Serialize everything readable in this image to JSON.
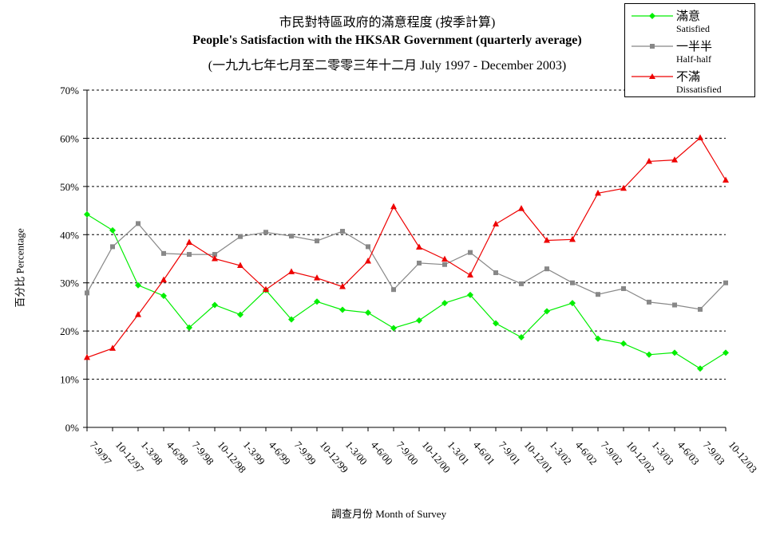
{
  "chart_data": {
    "type": "line",
    "title_zh": "市民對特區政府的滿意程度 (按季計算)",
    "title": "People's Satisfaction with the HKSAR Government (quarterly average)",
    "subtitle": "(一九九七年七月至二零零三年十二月 July 1997 - December 2003)",
    "ylabel": "百分比 Percentage",
    "xlabel": "調查月份 Month of Survey",
    "ylim": [
      0,
      70
    ],
    "yticks": [
      "0%",
      "10%",
      "20%",
      "30%",
      "40%",
      "50%",
      "60%",
      "70%"
    ],
    "grid": "horizontal dashed",
    "legend_position": "top-right",
    "categories": [
      "7-9/97",
      "10-12/97",
      "1-3/98",
      "4-6/98",
      "7-9/98",
      "10-12/98",
      "1-3/99",
      "4-6/99",
      "7-9/99",
      "10-12/99",
      "1-3/00",
      "4-6/00",
      "7-9/00",
      "10-12/00",
      "1-3/01",
      "4-6/01",
      "7-9/01",
      "10-12/01",
      "1-3/02",
      "4-6/02",
      "7-9/02",
      "10-12/02",
      "1-3/03",
      "4-6/03",
      "7-9/03",
      "10-12/03"
    ],
    "series": [
      {
        "name_zh": "滿意",
        "name": "Satisfied",
        "color": "#00ee00",
        "marker": "diamond",
        "values": [
          44.2,
          40.9,
          29.5,
          27.3,
          20.7,
          25.4,
          23.4,
          28.5,
          22.4,
          26.1,
          24.4,
          23.8,
          20.6,
          22.2,
          25.8,
          27.5,
          21.6,
          18.7,
          24.1,
          25.8,
          18.4,
          17.4,
          15.1,
          15.5,
          12.2,
          15.5
        ]
      },
      {
        "name_zh": "一半半",
        "name": "Half-half",
        "color": "#888888",
        "marker": "square",
        "values": [
          27.9,
          37.5,
          42.3,
          36.1,
          35.9,
          35.9,
          39.6,
          40.5,
          39.7,
          38.7,
          40.7,
          37.5,
          28.6,
          34.1,
          33.8,
          36.3,
          32.1,
          29.8,
          32.9,
          30.0,
          27.6,
          28.8,
          26.0,
          25.4,
          24.5,
          30.0
        ]
      },
      {
        "name_zh": "不滿",
        "name": "Dissatisfied",
        "color": "#ee0000",
        "marker": "triangle",
        "values": [
          14.5,
          16.4,
          23.4,
          30.6,
          38.4,
          35.0,
          33.6,
          28.6,
          32.3,
          31.0,
          29.2,
          34.5,
          45.8,
          37.4,
          34.9,
          31.6,
          42.2,
          45.4,
          38.8,
          39.0,
          48.6,
          49.6,
          55.2,
          55.5,
          60.1,
          51.3
        ]
      }
    ]
  }
}
